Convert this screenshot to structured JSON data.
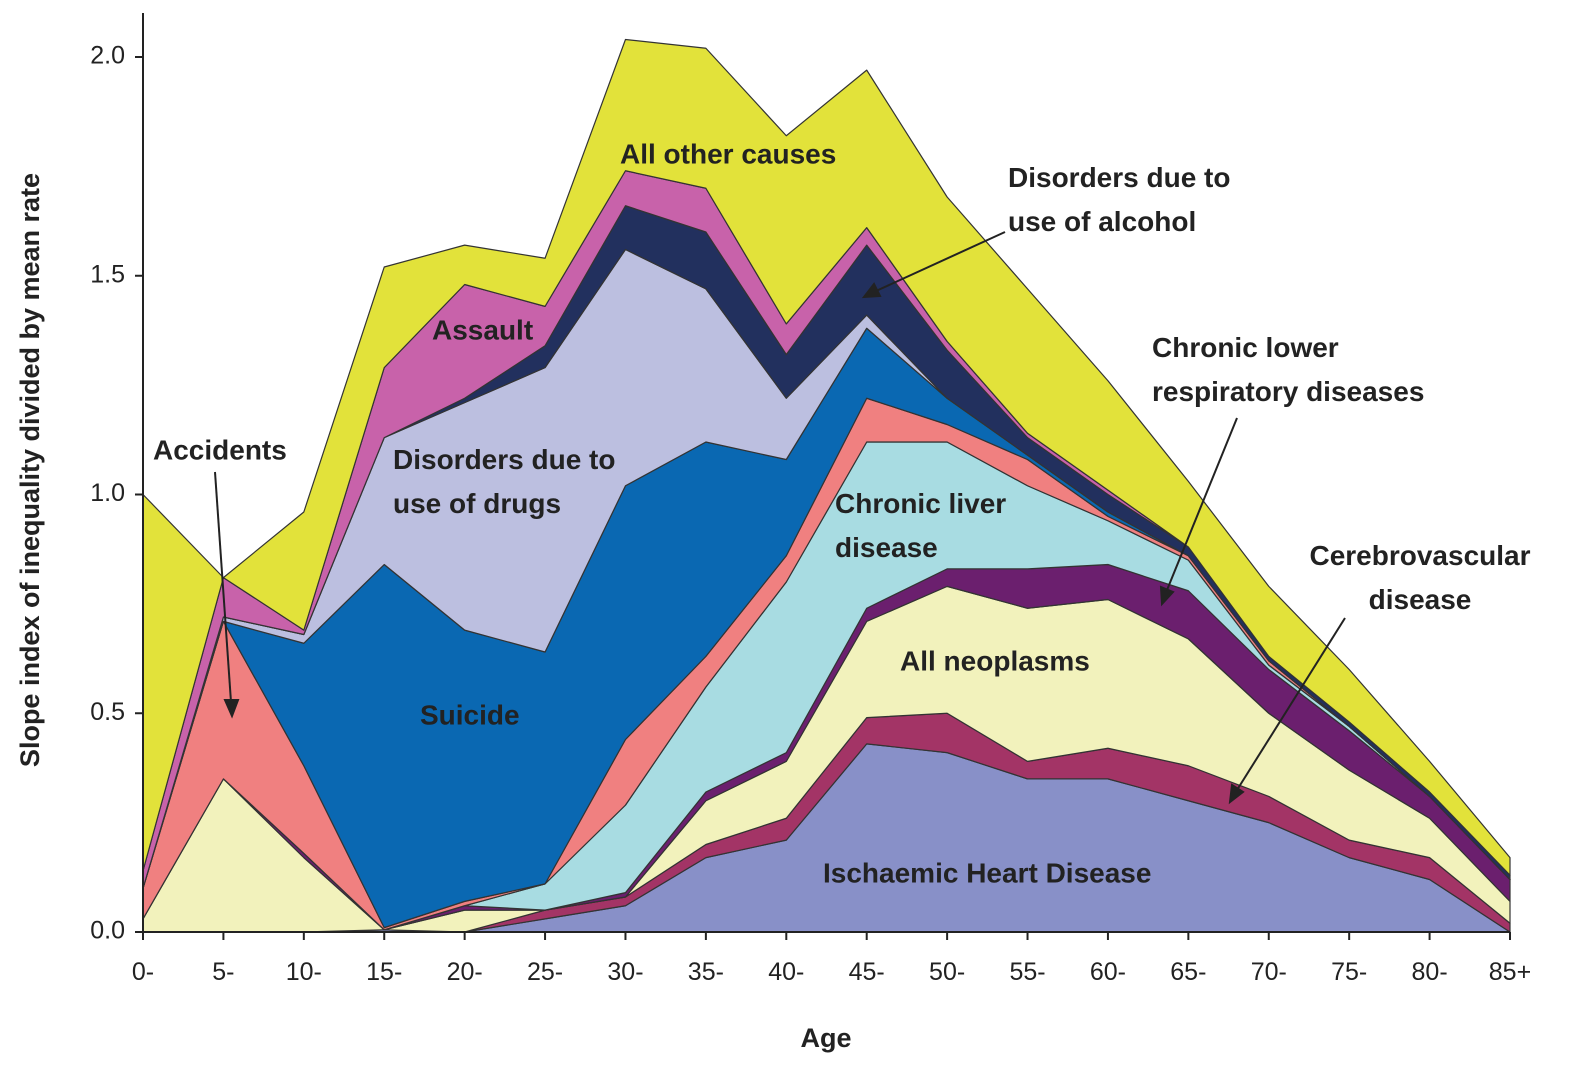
{
  "chart_data": {
    "type": "stacked_area",
    "x_label": "Age",
    "y_label": "Slope index of inequality divided by mean rate",
    "categories": [
      "0-",
      "5-",
      "10-",
      "15-",
      "20-",
      "25-",
      "30-",
      "35-",
      "40-",
      "45-",
      "50-",
      "55-",
      "60-",
      "65-",
      "70-",
      "75-",
      "80-",
      "85+"
    ],
    "ylim": [
      0,
      2.1
    ],
    "yticks": [
      {
        "value": 0,
        "label": "0.0"
      },
      0.5,
      {
        "value": 1,
        "label": "1.0"
      },
      1.5,
      {
        "value": 2,
        "label": "2.0"
      }
    ],
    "series": [
      {
        "name": "Ischaemic Heart Disease",
        "color": "#8890c8",
        "values": [
          0,
          0,
          0,
          0.005,
          0,
          0.03,
          0.06,
          0.17,
          0.21,
          0.43,
          0.41,
          0.35,
          0.35,
          0.3,
          0.25,
          0.17,
          0.12,
          0
        ]
      },
      {
        "name": "Cerebrovascular disease",
        "color": "#a33466",
        "values": [
          0,
          0,
          0,
          0,
          0,
          0.02,
          0.02,
          0.03,
          0.05,
          0.06,
          0.09,
          0.04,
          0.07,
          0.08,
          0.06,
          0.04,
          0.05,
          0.02
        ]
      },
      {
        "name": "All neoplasms",
        "color": "#f2f2bc",
        "values": [
          0.03,
          0.35,
          0.17,
          0,
          0.05,
          0,
          0,
          0.1,
          0.13,
          0.22,
          0.29,
          0.35,
          0.34,
          0.29,
          0.19,
          0.16,
          0.09,
          0.05
        ]
      },
      {
        "name": "Chronic lower respiratory diseases",
        "color": "#6b1f6e",
        "values": [
          0,
          0,
          0.01,
          0,
          0.01,
          0,
          0.01,
          0.02,
          0.02,
          0.03,
          0.04,
          0.09,
          0.08,
          0.11,
          0.1,
          0.09,
          0.05,
          0.05
        ]
      },
      {
        "name": "Chronic liver disease",
        "color": "#a8dce2",
        "values": [
          0,
          0,
          0,
          0,
          0,
          0.06,
          0.2,
          0.24,
          0.39,
          0.38,
          0.29,
          0.19,
          0.1,
          0.07,
          0.01,
          0.01,
          0,
          0
        ]
      },
      {
        "name": "Accidents",
        "color": "#f08080",
        "values": [
          0.07,
          0.36,
          0.2,
          0.005,
          0.01,
          0,
          0.15,
          0.07,
          0.06,
          0.1,
          0.04,
          0.06,
          0.01,
          0.01,
          0.01,
          0,
          0,
          0
        ]
      },
      {
        "name": "Suicide",
        "color": "#0a68b2",
        "values": [
          0,
          0,
          0.28,
          0.83,
          0.62,
          0.53,
          0.58,
          0.49,
          0.22,
          0.16,
          0.06,
          0.01,
          0.01,
          0,
          0,
          0,
          0,
          0
        ]
      },
      {
        "name": "Disorders due to use of drugs",
        "color": "#bcbfe0",
        "values": [
          0,
          0.01,
          0.02,
          0.29,
          0.52,
          0.65,
          0.54,
          0.35,
          0.14,
          0.03,
          0,
          0,
          0,
          0,
          0,
          0,
          0,
          0
        ]
      },
      {
        "name": "Disorders due to use of alcohol",
        "color": "#22305e",
        "values": [
          0,
          0,
          0,
          0,
          0.01,
          0.05,
          0.1,
          0.13,
          0.1,
          0.16,
          0.11,
          0.04,
          0.04,
          0.02,
          0.01,
          0.01,
          0.01,
          0.01
        ]
      },
      {
        "name": "Assault",
        "color": "#c862aa",
        "values": [
          0.04,
          0.09,
          0.01,
          0.16,
          0.26,
          0.09,
          0.08,
          0.1,
          0.07,
          0.04,
          0.02,
          0.01,
          0.01,
          0,
          0,
          0,
          0,
          0
        ]
      },
      {
        "name": "All other causes",
        "color": "#e2e23a",
        "values": [
          0.86,
          0,
          0.27,
          0.23,
          0.09,
          0.11,
          0.3,
          0.32,
          0.43,
          0.36,
          0.33,
          0.33,
          0.25,
          0.15,
          0.16,
          0.12,
          0.07,
          0.04
        ]
      }
    ]
  }
}
